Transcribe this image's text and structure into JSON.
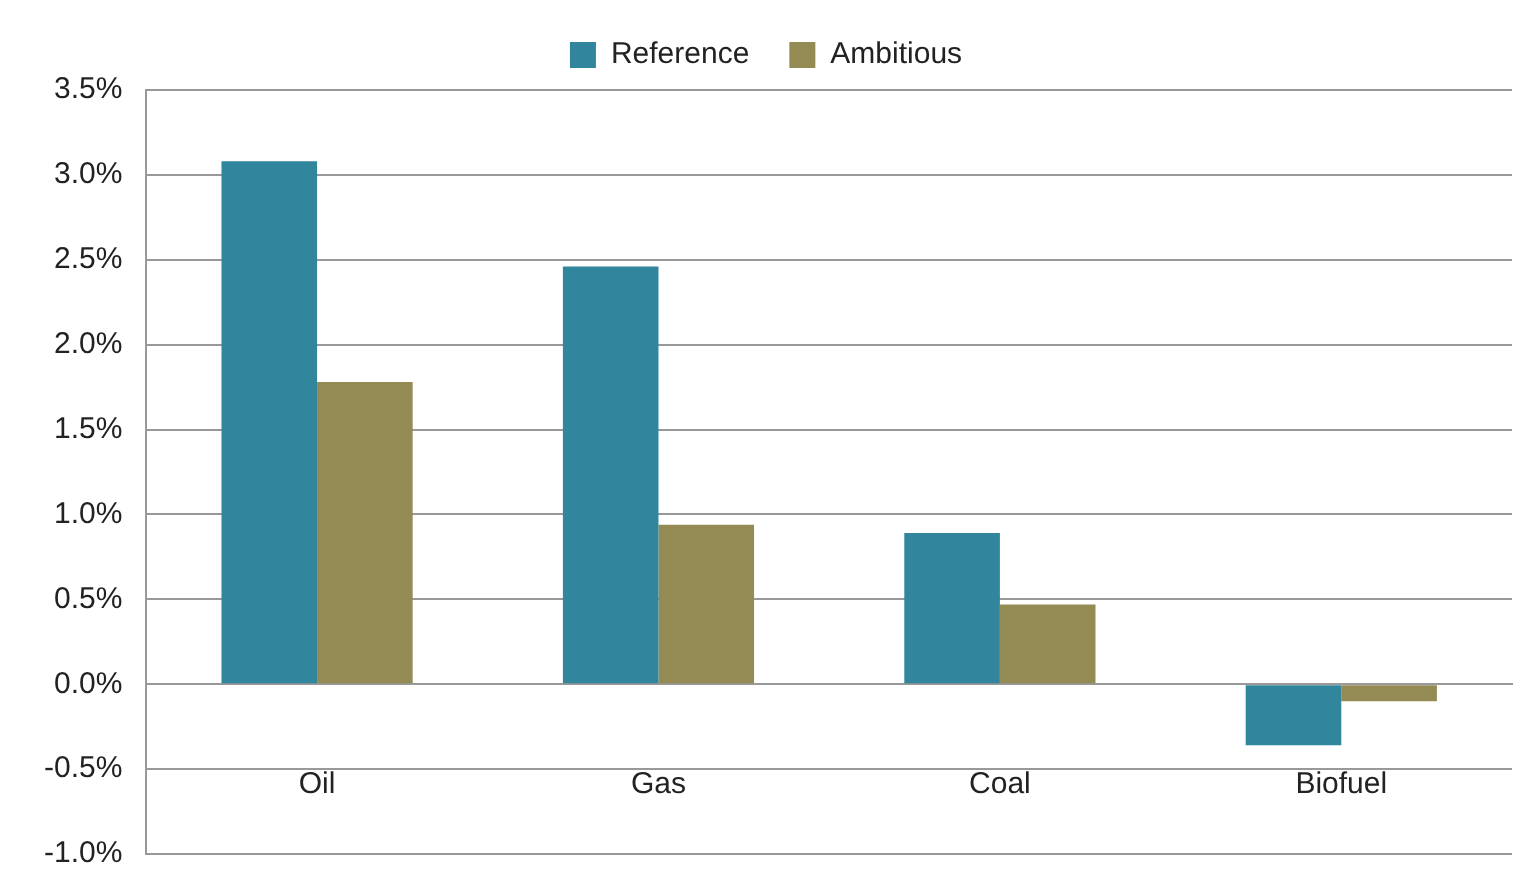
{
  "chart_data": {
    "type": "bar",
    "categories": [
      "Oil",
      "Gas",
      "Coal",
      "Biofuel"
    ],
    "series": [
      {
        "name": "Reference",
        "color": "#31859c",
        "values": [
          3.08,
          2.46,
          0.89,
          -0.36
        ]
      },
      {
        "name": "Ambitious",
        "color": "#948a54",
        "values": [
          1.78,
          0.94,
          0.47,
          -0.1
        ]
      }
    ],
    "ylim": [
      -1,
      3.5
    ],
    "yticks": [
      {
        "value": -1,
        "label": "-1.0%"
      },
      {
        "value": -0.5,
        "label": "-0.5%"
      },
      {
        "value": 0,
        "label": "0.0%"
      },
      {
        "value": 0.5,
        "label": "0.5%"
      },
      {
        "value": 1,
        "label": "1.0%"
      },
      {
        "value": 1.5,
        "label": "1.5%"
      },
      {
        "value": 2,
        "label": "2.0%"
      },
      {
        "value": 2.5,
        "label": "2.5%"
      },
      {
        "value": 3,
        "label": "3.0%"
      },
      {
        "value": 3.5,
        "label": "3.5%"
      }
    ],
    "grid": "y",
    "legend": "top"
  }
}
